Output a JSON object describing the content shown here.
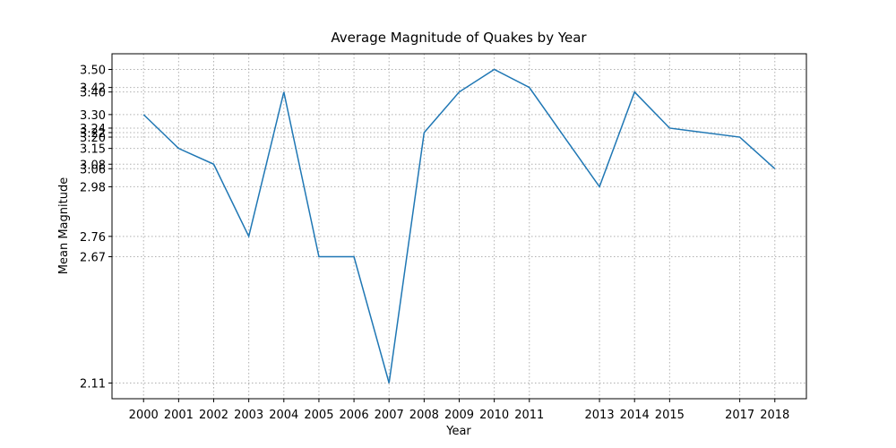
{
  "chart_data": {
    "type": "line",
    "title": "Average Magnitude of Quakes by Year",
    "x_label": "Year",
    "y_label": "Mean Magnitude",
    "x": [
      2000,
      2001,
      2002,
      2003,
      2004,
      2005,
      2006,
      2007,
      2008,
      2009,
      2010,
      2011,
      2013,
      2014,
      2015,
      2017,
      2018
    ],
    "series": [
      {
        "name": "Mean Magnitude",
        "color": "#1f77b4",
        "values": [
          3.3,
          3.15,
          3.08,
          2.76,
          3.4,
          2.67,
          2.67,
          2.11,
          3.22,
          3.4,
          3.5,
          3.42,
          2.98,
          3.4,
          3.24,
          3.2,
          3.06
        ]
      }
    ],
    "xlim": [
      1999.1,
      2018.9
    ],
    "xticks": [
      2000,
      2001,
      2002,
      2003,
      2004,
      2005,
      2006,
      2007,
      2008,
      2009,
      2010,
      2011,
      2013,
      2014,
      2015,
      2017,
      2018
    ],
    "ylim": [
      2.0405,
      3.5695
    ],
    "yticks": [
      2.11,
      2.67,
      2.76,
      2.98,
      3.06,
      3.08,
      3.15,
      {
        "value": 3.2,
        "label": "3.20"
      },
      3.22,
      3.24,
      {
        "value": 3.3,
        "label": "3.30"
      },
      {
        "value": 3.4,
        "label": "3.40"
      },
      3.42,
      {
        "value": 3.5,
        "label": "3.50"
      }
    ],
    "grid": true
  }
}
